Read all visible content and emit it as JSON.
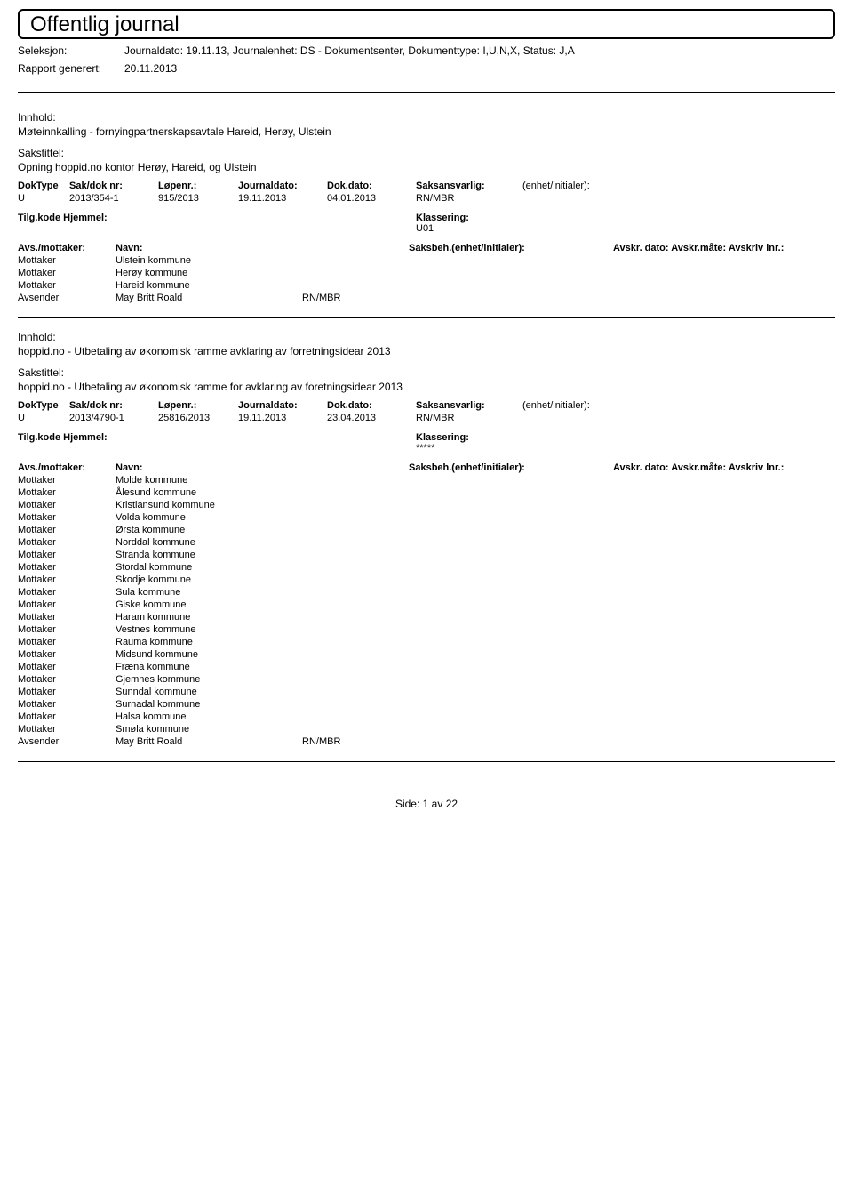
{
  "header": {
    "title": "Offentlig journal",
    "seleksjon_label": "Seleksjon:",
    "seleksjon_value": "Journaldato: 19.11.13, Journalenhet: DS - Dokumentsenter, Dokumenttype: I,U,N,X, Status: J,A",
    "rapport_label": "Rapport generert:",
    "rapport_value": "20.11.2013"
  },
  "labels": {
    "innhold": "Innhold:",
    "sakstittel": "Sakstittel:",
    "doktype": "DokType",
    "sakdok": "Sak/dok nr:",
    "lopenr": "Løpenr.:",
    "journaldato": "Journaldato:",
    "dokdato": "Dok.dato:",
    "saksansvarlig": "Saksansvarlig:",
    "enhet": "(enhet/initialer):",
    "tilgkode": "Tilg.kode",
    "hjemmel": "Hjemmel:",
    "klassering": "Klassering:",
    "avsmottaker": "Avs./mottaker:",
    "navn": "Navn:",
    "saksbeh": "Saksbeh.(enhet/initialer):",
    "avskr": "Avskr. dato:  Avskr.måte:  Avskriv lnr.:"
  },
  "record1": {
    "innhold": "Møteinnkalling - fornyingpartnerskapsavtale Hareid, Herøy, Ulstein",
    "sakstittel": "Opning hoppid.no kontor Herøy, Hareid, og Ulstein",
    "doktype": "U",
    "sakdok": "2013/354-1",
    "lopenr": "915/2013",
    "journaldato": "19.11.2013",
    "dokdato": "04.01.2013",
    "saksansvarlig": "RN/MBR",
    "klassering": "U01",
    "parties": [
      {
        "role": "Mottaker",
        "name": "Ulstein kommune",
        "code": ""
      },
      {
        "role": "Mottaker",
        "name": "Herøy kommune",
        "code": ""
      },
      {
        "role": "Mottaker",
        "name": "Hareid kommune",
        "code": ""
      },
      {
        "role": "Avsender",
        "name": "May Britt Roald",
        "code": "RN/MBR"
      }
    ]
  },
  "record2": {
    "innhold": "hoppid.no - Utbetaling av økonomisk ramme avklaring av forretningsidear 2013",
    "sakstittel": "hoppid.no - Utbetaling av økonomisk ramme for avklaring av foretningsidear 2013",
    "doktype": "U",
    "sakdok": "2013/4790-1",
    "lopenr": "25816/2013",
    "journaldato": "19.11.2013",
    "dokdato": "23.04.2013",
    "saksansvarlig": "RN/MBR",
    "klassering": "*****",
    "parties": [
      {
        "role": "Mottaker",
        "name": "Molde kommune",
        "code": ""
      },
      {
        "role": "Mottaker",
        "name": "Ålesund kommune",
        "code": ""
      },
      {
        "role": "Mottaker",
        "name": "Kristiansund kommune",
        "code": ""
      },
      {
        "role": "Mottaker",
        "name": "Volda kommune",
        "code": ""
      },
      {
        "role": "Mottaker",
        "name": "Ørsta kommune",
        "code": ""
      },
      {
        "role": "Mottaker",
        "name": "Norddal kommune",
        "code": ""
      },
      {
        "role": "Mottaker",
        "name": "Stranda kommune",
        "code": ""
      },
      {
        "role": "Mottaker",
        "name": "Stordal kommune",
        "code": ""
      },
      {
        "role": "Mottaker",
        "name": "Skodje kommune",
        "code": ""
      },
      {
        "role": "Mottaker",
        "name": "Sula kommune",
        "code": ""
      },
      {
        "role": "Mottaker",
        "name": "Giske kommune",
        "code": ""
      },
      {
        "role": "Mottaker",
        "name": "Haram kommune",
        "code": ""
      },
      {
        "role": "Mottaker",
        "name": "Vestnes kommune",
        "code": ""
      },
      {
        "role": "Mottaker",
        "name": "Rauma kommune",
        "code": ""
      },
      {
        "role": "Mottaker",
        "name": "Midsund kommune",
        "code": ""
      },
      {
        "role": "Mottaker",
        "name": "Fræna kommune",
        "code": ""
      },
      {
        "role": "Mottaker",
        "name": "Gjemnes kommune",
        "code": ""
      },
      {
        "role": "Mottaker",
        "name": "Sunndal kommune",
        "code": ""
      },
      {
        "role": "Mottaker",
        "name": "Surnadal kommune",
        "code": ""
      },
      {
        "role": "Mottaker",
        "name": "Halsa kommune",
        "code": ""
      },
      {
        "role": "Mottaker",
        "name": "Smøla kommune",
        "code": ""
      },
      {
        "role": "Avsender",
        "name": "May Britt Roald",
        "code": "RN/MBR"
      }
    ]
  },
  "footer": {
    "side_label": "Side:",
    "side_current": "1",
    "side_sep": "av",
    "side_total": "22"
  }
}
